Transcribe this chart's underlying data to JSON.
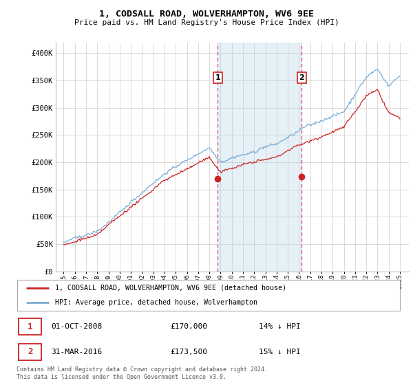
{
  "title": "1, CODSALL ROAD, WOLVERHAMPTON, WV6 9EE",
  "subtitle": "Price paid vs. HM Land Registry's House Price Index (HPI)",
  "ylim": [
    0,
    420000
  ],
  "yticks": [
    0,
    50000,
    100000,
    150000,
    200000,
    250000,
    300000,
    350000,
    400000
  ],
  "ytick_labels": [
    "£0",
    "£50K",
    "£100K",
    "£150K",
    "£200K",
    "£250K",
    "£300K",
    "£350K",
    "£400K"
  ],
  "bg_color": "#ffffff",
  "grid_color": "#cccccc",
  "hpi_color": "#7aadd4",
  "price_color": "#cc2222",
  "marker1_year": 2008.75,
  "marker2_year": 2016.25,
  "marker1_label": "1",
  "marker2_label": "2",
  "marker1_price": 170000,
  "marker2_price": 173500,
  "marker1_date_str": "01-OCT-2008",
  "marker2_date_str": "31-MAR-2016",
  "marker1_pct": "14% ↓ HPI",
  "marker2_pct": "15% ↓ HPI",
  "legend_line1": "1, CODSALL ROAD, WOLVERHAMPTON, WV6 9EE (detached house)",
  "legend_line2": "HPI: Average price, detached house, Wolverhampton",
  "footnote": "Contains HM Land Registry data © Crown copyright and database right 2024.\nThis data is licensed under the Open Government Licence v3.0.",
  "xstart_year": 1995,
  "xend_year": 2025
}
